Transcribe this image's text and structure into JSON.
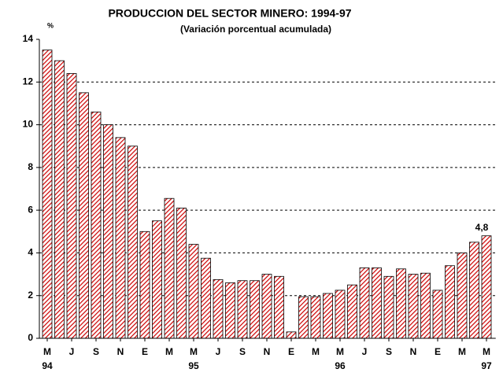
{
  "chart_data": {
    "type": "bar",
    "title": "PRODUCCION DEL SECTOR MINERO: 1994-97",
    "subtitle": "(Variación porcentual acumulada)",
    "y_unit_label": "%",
    "categories": [
      "M",
      null,
      "J",
      null,
      "S",
      null,
      "N",
      null,
      "E",
      null,
      "M",
      null,
      "M",
      null,
      "J",
      null,
      "S",
      null,
      "N",
      null,
      "E",
      null,
      "M",
      null,
      "M",
      null,
      "J",
      null,
      "S",
      null,
      "N",
      null,
      "E",
      null,
      "M",
      null,
      "M"
    ],
    "category_years": [
      "94",
      null,
      null,
      null,
      null,
      null,
      null,
      null,
      null,
      null,
      null,
      null,
      "95",
      null,
      null,
      null,
      null,
      null,
      null,
      null,
      null,
      null,
      null,
      null,
      "96",
      null,
      null,
      null,
      null,
      null,
      null,
      null,
      null,
      null,
      null,
      null,
      "97"
    ],
    "values": [
      13.5,
      13.0,
      12.4,
      11.5,
      10.6,
      10.0,
      9.4,
      9.0,
      5.0,
      5.5,
      6.55,
      6.1,
      4.4,
      3.75,
      2.75,
      2.6,
      2.7,
      2.7,
      3.0,
      2.9,
      0.3,
      1.95,
      1.95,
      2.1,
      2.25,
      2.5,
      3.3,
      3.3,
      2.9,
      3.25,
      3.0,
      3.05,
      2.25,
      3.4,
      4.0,
      4.5,
      4.8
    ],
    "value_labels": [
      null,
      null,
      null,
      null,
      null,
      null,
      null,
      null,
      null,
      null,
      null,
      null,
      null,
      null,
      null,
      null,
      null,
      null,
      null,
      null,
      null,
      null,
      null,
      null,
      null,
      null,
      null,
      null,
      null,
      null,
      null,
      null,
      null,
      null,
      null,
      null,
      "4,8"
    ],
    "color": "#cc0000",
    "ylim": [
      0,
      14
    ],
    "yticks": [
      0,
      2,
      4,
      6,
      8,
      10,
      12,
      14
    ],
    "grid": true
  }
}
